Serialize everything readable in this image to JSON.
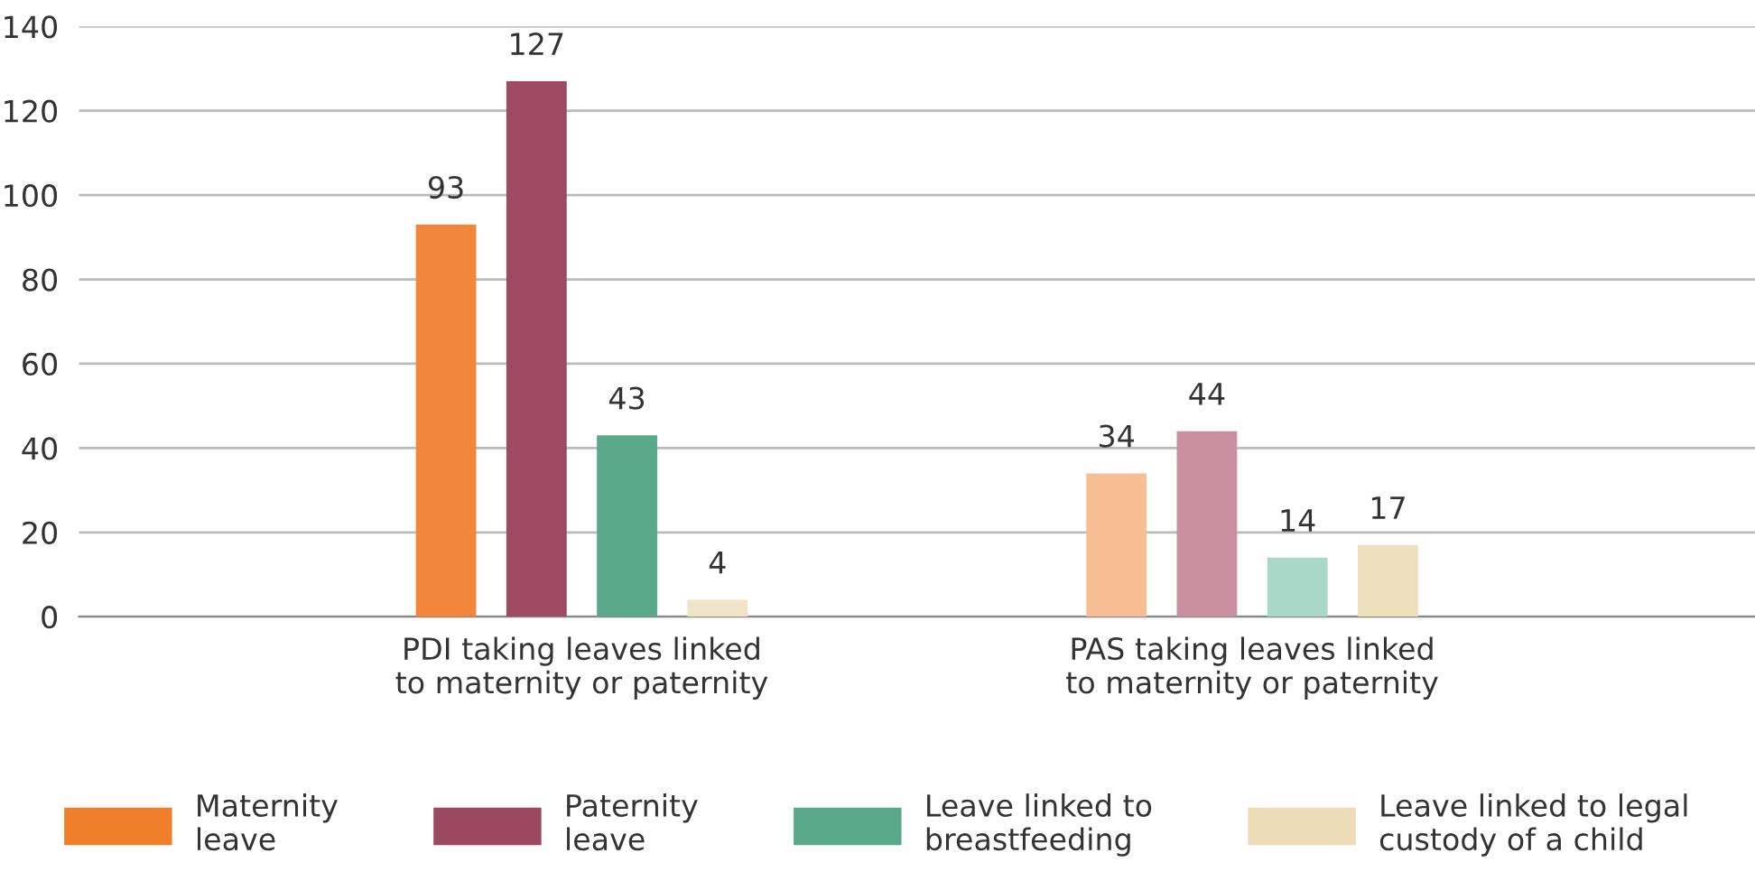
{
  "chart_data": {
    "type": "bar",
    "categories": [
      "PDI taking leaves linked\nto maternity or paternity",
      "PAS taking leaves linked\nto maternity or paternity"
    ],
    "series": [
      {
        "name": "Maternity\nleave",
        "color": "#f07f2b",
        "colors": [
          "#f2863a",
          "#f7bd93"
        ],
        "values": [
          93,
          34
        ]
      },
      {
        "name": "Paternity\nleave",
        "color": "#9b4860",
        "colors": [
          "#9e4a63",
          "#c88fa1"
        ],
        "values": [
          127,
          44
        ]
      },
      {
        "name": "Leave linked to\nbreastfeeding",
        "color": "#5aa98b",
        "colors": [
          "#5aa98b",
          "#a9d8c8"
        ],
        "values": [
          43,
          14
        ]
      },
      {
        "name": "Leave linked to legal\ncustody of a child",
        "color": "#ecdcb8",
        "colors": [
          "#efe3c8",
          "#eedfbd"
        ],
        "values": [
          4,
          17
        ]
      }
    ],
    "ylim": [
      0,
      140
    ],
    "yticks": [
      0,
      20,
      40,
      60,
      80,
      100,
      120,
      140
    ],
    "grid": "y",
    "data_labels": true,
    "legend": "bottom"
  }
}
